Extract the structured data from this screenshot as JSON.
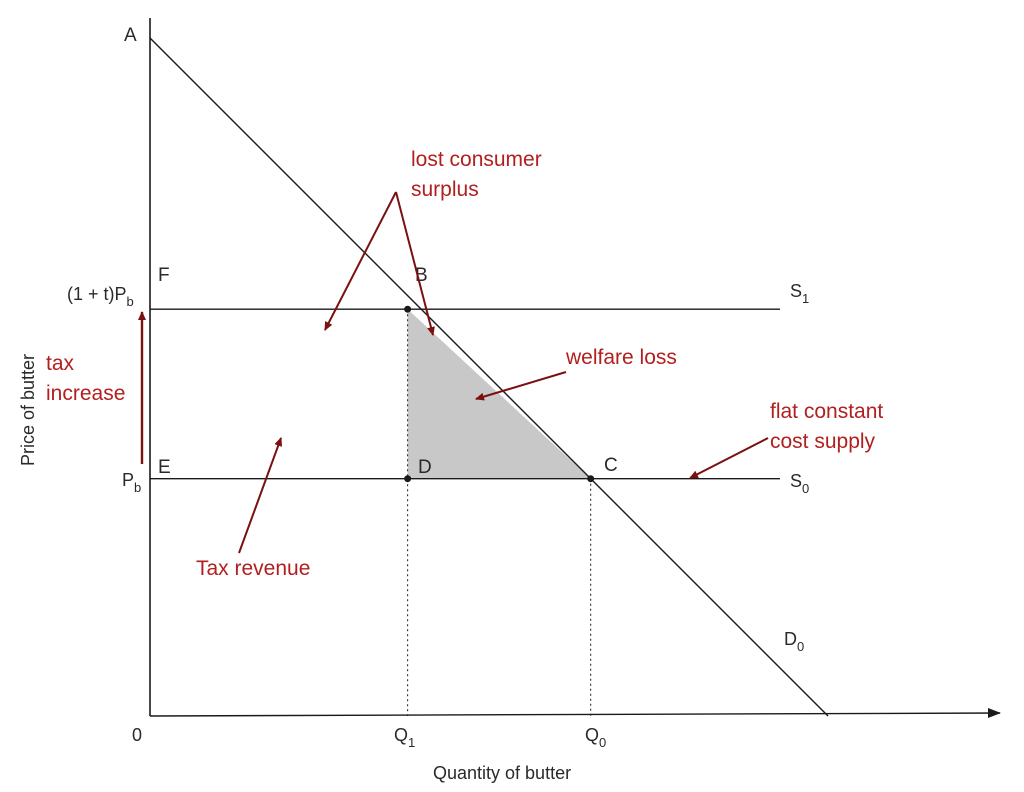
{
  "chart_data": {
    "type": "line",
    "xlabel": "Quantity of butter",
    "ylabel": "Price of butter",
    "origin_label": "0",
    "grid": false,
    "x_ticks": [
      {
        "base": "Q",
        "sub": "1"
      },
      {
        "base": "Q",
        "sub": "0"
      }
    ],
    "y_ticks": [
      {
        "text": "(1 + t)P",
        "sub": "b"
      },
      {
        "text": "P",
        "sub": "b"
      }
    ],
    "series": [
      {
        "name": "D",
        "sub": "0",
        "kind": "demand",
        "from": [
          0,
          10
        ],
        "to": [
          10,
          0
        ]
      },
      {
        "name": "S",
        "sub": "1",
        "kind": "supply",
        "y": 6
      },
      {
        "name": "S",
        "sub": "0",
        "kind": "supply",
        "y": 3.5
      }
    ],
    "points": [
      {
        "label": "A",
        "x": 0,
        "y": 10,
        "dot": false
      },
      {
        "label": "F",
        "x": 0,
        "y": 6,
        "dot": false
      },
      {
        "label": "B",
        "x": 3.8,
        "y": 6,
        "dot": true
      },
      {
        "label": "E",
        "x": 0,
        "y": 3.5,
        "dot": false
      },
      {
        "label": "D",
        "x": 3.8,
        "y": 3.5,
        "dot": true
      },
      {
        "label": "C",
        "x": 6.5,
        "y": 3.5,
        "dot": true
      }
    ],
    "shaded_region": {
      "vertices": [
        "B",
        "D",
        "C"
      ],
      "color": "#c8c8c8"
    },
    "annotations": [
      {
        "lines": [
          "lost consumer",
          "surplus"
        ]
      },
      {
        "lines": [
          "welfare loss"
        ]
      },
      {
        "lines": [
          "flat constant",
          "cost supply"
        ]
      },
      {
        "lines": [
          "tax",
          "increase"
        ]
      },
      {
        "lines": [
          "Tax revenue"
        ]
      }
    ],
    "colors": {
      "axis": "#1a1a1a",
      "curve": "#1a1a1a",
      "annotation": "#b21f1f",
      "shade": "#c8c8c8"
    }
  }
}
